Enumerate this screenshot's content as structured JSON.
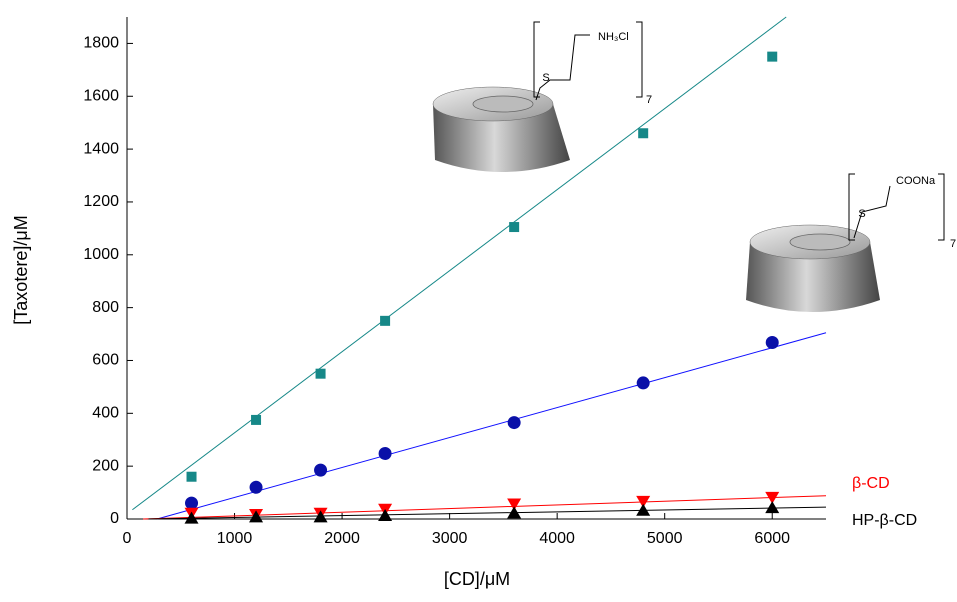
{
  "chart_data": {
    "type": "scatter",
    "x_label": "[CD]/μM",
    "y_label": "[Taxotere]/μM",
    "xlim": [
      0,
      6500
    ],
    "xticks": [
      0,
      1000,
      2000,
      3000,
      4000,
      5000,
      6000
    ],
    "ylim": [
      0,
      1900
    ],
    "yticks": [
      0,
      200,
      400,
      600,
      800,
      1000,
      1200,
      1400,
      1600,
      1800
    ],
    "x": [
      600,
      1200,
      1800,
      2400,
      3600,
      4800,
      6000
    ],
    "series": [
      {
        "marker": "square",
        "color": "#168888",
        "values": [
          160,
          375,
          550,
          750,
          1105,
          1460,
          1750
        ],
        "fit": {
          "x": [
            50,
            6130
          ],
          "values": [
            35,
            1900
          ]
        }
      },
      {
        "marker": "circle",
        "color": "#0a10a8",
        "line_color": "#1010ff",
        "values": [
          60,
          120,
          185,
          248,
          365,
          515,
          668
        ],
        "fit": {
          "x": [
            280,
            6500
          ],
          "values": [
            0,
            705
          ]
        }
      },
      {
        "name": "β-CD",
        "marker": "triangle-down",
        "color": "#ff0000",
        "values": [
          20,
          15,
          20,
          35,
          55,
          65,
          80
        ],
        "fit": {
          "x": [
            150,
            6500
          ],
          "values": [
            0,
            88
          ]
        }
      },
      {
        "name": "HP-β-CD",
        "marker": "triangle-up",
        "color": "#000000",
        "values": [
          5,
          10,
          10,
          15,
          25,
          35,
          45
        ],
        "fit": {
          "x": [
            200,
            6500
          ],
          "values": [
            0,
            45
          ]
        }
      }
    ],
    "structures": [
      {
        "labels": [
          "NH₃Cl",
          "S",
          "7"
        ]
      },
      {
        "labels": [
          "COONa",
          "S",
          "7"
        ]
      }
    ]
  }
}
